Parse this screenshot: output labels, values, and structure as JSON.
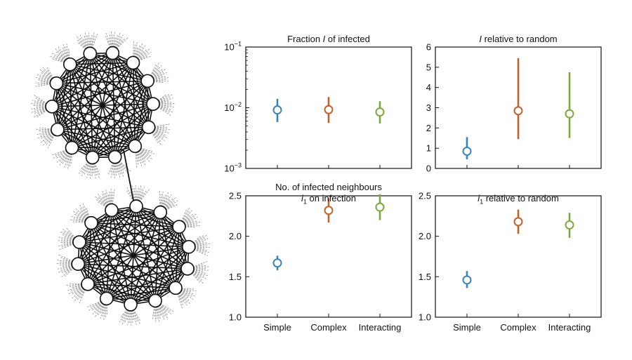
{
  "colors": {
    "simple": "#3a85b8",
    "complex": "#c0622b",
    "interacting": "#7aab3a",
    "axis": "#111111"
  },
  "chart_data": [
    {
      "type": "errorbar",
      "title": "Fraction I of infected",
      "title_prefix": "Fraction ",
      "title_italic": "I",
      "title_suffix": " of infected",
      "categories": [
        "Simple",
        "Complex",
        "Interacting"
      ],
      "yscale": "log",
      "ylim": [
        0.001,
        0.1
      ],
      "yticks": [
        0.001,
        0.01,
        0.1
      ],
      "ytick_labels": [
        {
          "base": "10",
          "exp": "−3"
        },
        {
          "base": "10",
          "exp": "−2"
        },
        {
          "base": "10",
          "exp": "−1"
        }
      ],
      "show_xtick_labels": false,
      "values": [
        0.0092,
        0.0093,
        0.0085
      ],
      "lower": [
        0.0058,
        0.0056,
        0.0055
      ],
      "upper": [
        0.014,
        0.015,
        0.0128
      ]
    },
    {
      "type": "errorbar",
      "title": "I relative to random",
      "title_prefix": "",
      "title_italic": "I",
      "title_suffix": " relative to random",
      "categories": [
        "Simple",
        "Complex",
        "Interacting"
      ],
      "yscale": "linear",
      "ylim": [
        0,
        6
      ],
      "yticks": [
        0,
        1,
        2,
        3,
        4,
        5,
        6
      ],
      "ytick_labels": [
        "0",
        "1",
        "2",
        "3",
        "4",
        "5",
        "6"
      ],
      "show_xtick_labels": false,
      "values": [
        0.85,
        2.85,
        2.7
      ],
      "lower": [
        0.45,
        1.45,
        1.5
      ],
      "upper": [
        1.55,
        5.45,
        4.75
      ]
    },
    {
      "type": "errorbar",
      "title": "No. of infected neighbours i1 on infection",
      "title_line1": "No. of infected neighbours",
      "title_prefix": "",
      "title_italic": "i",
      "title_sub": "1",
      "title_suffix": " on infection",
      "categories": [
        "Simple",
        "Complex",
        "Interacting"
      ],
      "yscale": "linear",
      "ylim": [
        1.0,
        2.5
      ],
      "yticks": [
        1.0,
        1.5,
        2.0,
        2.5
      ],
      "ytick_labels": [
        "1.0",
        "1.5",
        "2.0",
        "2.5"
      ],
      "show_xtick_labels": true,
      "values": [
        1.67,
        2.32,
        2.36
      ],
      "lower": [
        1.58,
        2.17,
        2.2
      ],
      "upper": [
        1.76,
        2.47,
        2.52
      ]
    },
    {
      "type": "errorbar",
      "title": "i1 relative to random",
      "title_prefix": "",
      "title_italic": "i",
      "title_sub": "1",
      "title_suffix": " relative to random",
      "categories": [
        "Simple",
        "Complex",
        "Interacting"
      ],
      "yscale": "linear",
      "ylim": [
        1.0,
        2.5
      ],
      "yticks": [
        1.0,
        1.5,
        2.0,
        2.5
      ],
      "ytick_labels": [
        "1.0",
        "1.5",
        "2.0",
        "2.5"
      ],
      "show_xtick_labels": true,
      "values": [
        1.46,
        2.18,
        2.14
      ],
      "lower": [
        1.36,
        2.03,
        1.98
      ],
      "upper": [
        1.57,
        2.33,
        2.29
      ]
    }
  ],
  "network": {
    "type": "two connected cliques",
    "clique_size": 14,
    "bridge_edges": 1
  }
}
